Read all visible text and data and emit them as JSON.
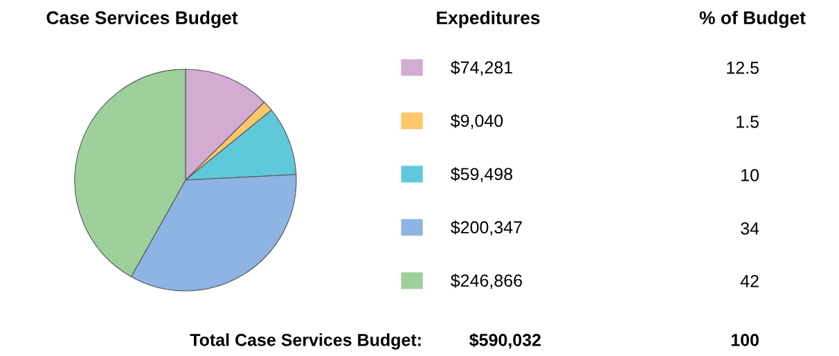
{
  "chart_data": {
    "type": "pie",
    "title": "Case Services Budget",
    "categories": [
      "$74,281",
      "$9,040",
      "$59,498",
      "$200,347",
      "$246,866"
    ],
    "values": [
      74281,
      9040,
      59498,
      200347,
      246866
    ],
    "colors": [
      "#d3acd3",
      "#fdc76a",
      "#5fc9db",
      "#8db4e2",
      "#9dd09b"
    ],
    "legend": "right",
    "annotations": [
      "Expeditures",
      "% of Budget",
      "12.5",
      "1.5",
      "10",
      "34",
      "42",
      "Total Case Services Budget:",
      "$590,032",
      "100"
    ]
  }
}
